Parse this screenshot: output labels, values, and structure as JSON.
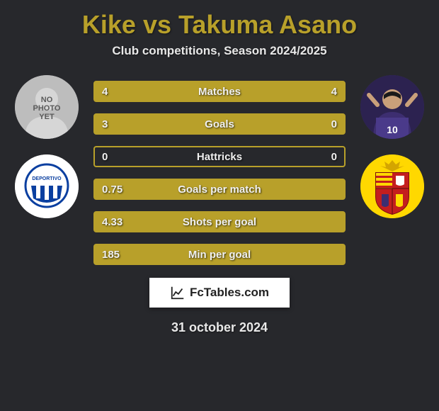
{
  "title": "Kike vs Takuma Asano",
  "subtitle": "Club competitions, Season 2024/2025",
  "accent_color": "#b8a02a",
  "background_color": "#27282c",
  "text_color": "#ffffff",
  "left": {
    "player_name": "Kike",
    "no_photo_text": "NO\nPHOTO\nYET",
    "club_name": "Deportivo Alavés"
  },
  "right": {
    "player_name": "Takuma Asano",
    "club_name": "RCD Mallorca"
  },
  "stats": [
    {
      "label": "Matches",
      "left_val": "4",
      "right_val": "4",
      "left_fill_pct": 50,
      "right_fill_pct": 50
    },
    {
      "label": "Goals",
      "left_val": "3",
      "right_val": "0",
      "left_fill_pct": 100,
      "right_fill_pct": 0
    },
    {
      "label": "Hattricks",
      "left_val": "0",
      "right_val": "0",
      "left_fill_pct": 0,
      "right_fill_pct": 0
    },
    {
      "label": "Goals per match",
      "left_val": "0.75",
      "right_val": "",
      "left_fill_pct": 100,
      "right_fill_pct": 0
    },
    {
      "label": "Shots per goal",
      "left_val": "4.33",
      "right_val": "",
      "left_fill_pct": 100,
      "right_fill_pct": 0
    },
    {
      "label": "Min per goal",
      "left_val": "185",
      "right_val": "",
      "left_fill_pct": 100,
      "right_fill_pct": 0
    }
  ],
  "footer_brand": "FcTables.com",
  "footer_date": "31 october 2024"
}
